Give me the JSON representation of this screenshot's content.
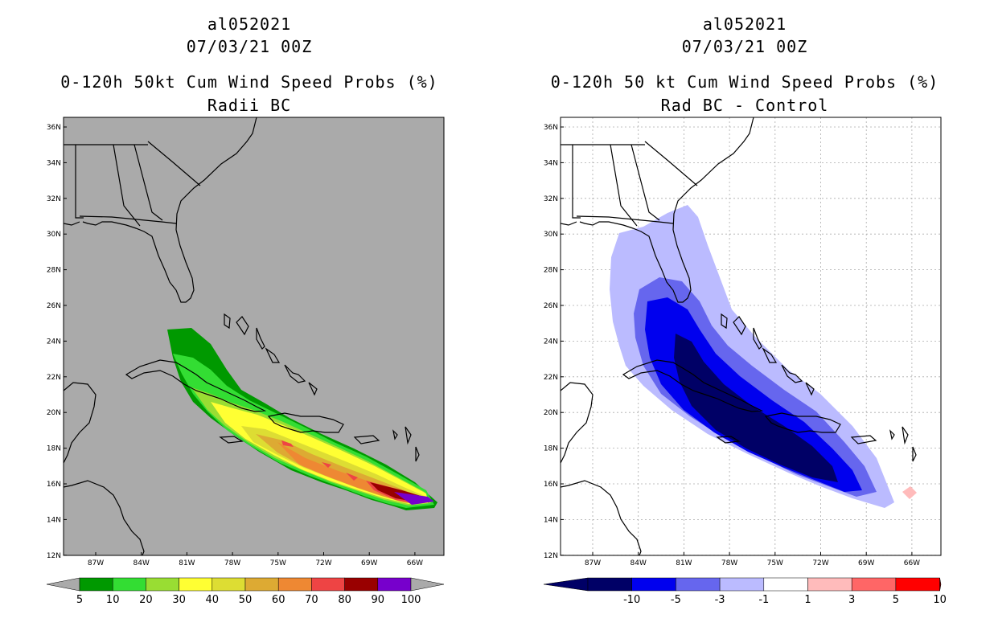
{
  "left": {
    "title_line1": "al052021",
    "title_line2": "07/03/21 00Z",
    "title_line3": "0-120h 50kt Cum Wind Speed Probs (%)",
    "title_line4": "Radii BC",
    "background": "#aaaaaa",
    "colorbar": {
      "colors": [
        "#009900",
        "#33dd33",
        "#99dd33",
        "#ffff33",
        "#dddd33",
        "#ddaa33",
        "#ee8833",
        "#ee4444",
        "#990000",
        "#7700cc"
      ],
      "labels": [
        "5",
        "10",
        "20",
        "30",
        "40",
        "50",
        "60",
        "70",
        "80",
        "90",
        "100"
      ],
      "end_color": "#aaaaaa"
    }
  },
  "right": {
    "title_line1": "al052021",
    "title_line2": "07/03/21 00Z",
    "title_line3": "0-120h 50 kt Cum Wind Speed Probs (%)",
    "title_line4": "Rad BC - Control",
    "background": "#ffffff",
    "colorbar": {
      "colors": [
        "#000066",
        "#0000ee",
        "#6666ee",
        "#bbbbff",
        "#ffffff",
        "#ffbbbb",
        "#ff6666",
        "#ff0000"
      ],
      "labels": [
        "-10",
        "-5",
        "-3",
        "-1",
        "1",
        "3",
        "5",
        "10"
      ],
      "low_end_color": "#000066",
      "high_end_color": "#660000"
    }
  },
  "axes": {
    "lat_labels": [
      "36N",
      "34N",
      "32N",
      "30N",
      "28N",
      "26N",
      "24N",
      "22N",
      "20N",
      "18N",
      "16N",
      "14N",
      "12N"
    ],
    "lon_labels": [
      "87W",
      "84W",
      "81W",
      "78W",
      "75W",
      "72W",
      "69W",
      "66W"
    ]
  }
}
